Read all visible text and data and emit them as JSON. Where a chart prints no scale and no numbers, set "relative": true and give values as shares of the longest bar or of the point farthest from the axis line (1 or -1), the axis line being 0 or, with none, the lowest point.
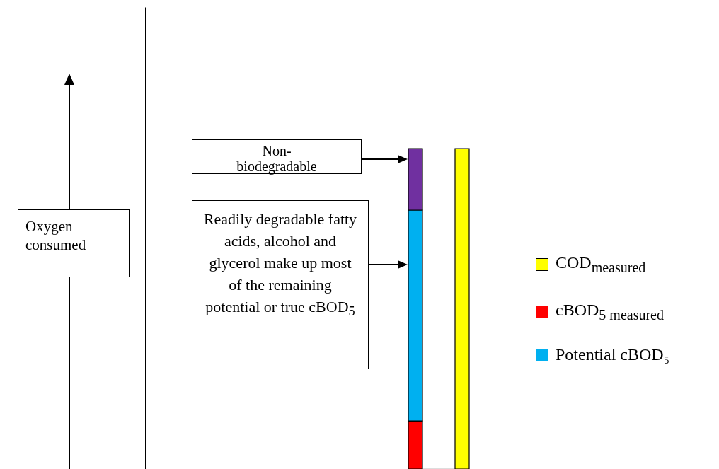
{
  "chart_data": {
    "type": "bar",
    "stacked": true,
    "relative": true,
    "categories": [
      null,
      null
    ],
    "series": [
      {
        "name": "cBOD$_{5 measured}$",
        "color": "#ff0000",
        "values": [
          0.15,
          null
        ]
      },
      {
        "name": "Potential cBOD₅",
        "color": "#00b0f0",
        "values": [
          0.658,
          null
        ]
      },
      {
        "color": "#7030a0",
        "values": [
          0.192,
          null
        ]
      },
      {
        "name": "COD$_{measured}$",
        "color": "#ffff00",
        "values": [
          null,
          1.0
        ]
      }
    ],
    "legend": "right",
    "annotations": [
      "Oxygen consumed",
      "Non-biodegradable",
      "Readily degradable fatty acids, alcohol and glycerol make up most of the remaining potential or true cBOD$_{5}$"
    ]
  }
}
